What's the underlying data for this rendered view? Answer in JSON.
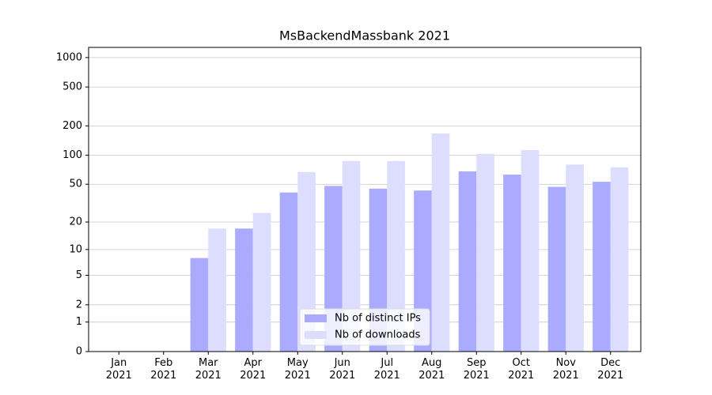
{
  "chart_data": {
    "type": "bar",
    "title": "MsBackendMassbank 2021",
    "categories": [
      "Jan\n2021",
      "Feb\n2021",
      "Mar\n2021",
      "Apr\n2021",
      "May\n2021",
      "Jun\n2021",
      "Jul\n2021",
      "Aug\n2021",
      "Sep\n2021",
      "Oct\n2021",
      "Nov\n2021",
      "Dec\n2021"
    ],
    "series": [
      {
        "name": "Nb of distinct IPs",
        "color": "#aaaaff",
        "values": [
          0,
          0,
          8,
          17,
          41,
          48,
          45,
          43,
          68,
          63,
          47,
          53
        ]
      },
      {
        "name": "Nb of downloads",
        "color": "#ddddff",
        "values": [
          0,
          0,
          17,
          25,
          67,
          87,
          87,
          167,
          103,
          113,
          80,
          75
        ]
      }
    ],
    "yscale": "log1p",
    "ylim": [
      0,
      1270
    ],
    "yticks": [
      0,
      1,
      2,
      5,
      10,
      20,
      50,
      100,
      200,
      500,
      1000
    ],
    "grid": true,
    "legend": "lower center"
  }
}
